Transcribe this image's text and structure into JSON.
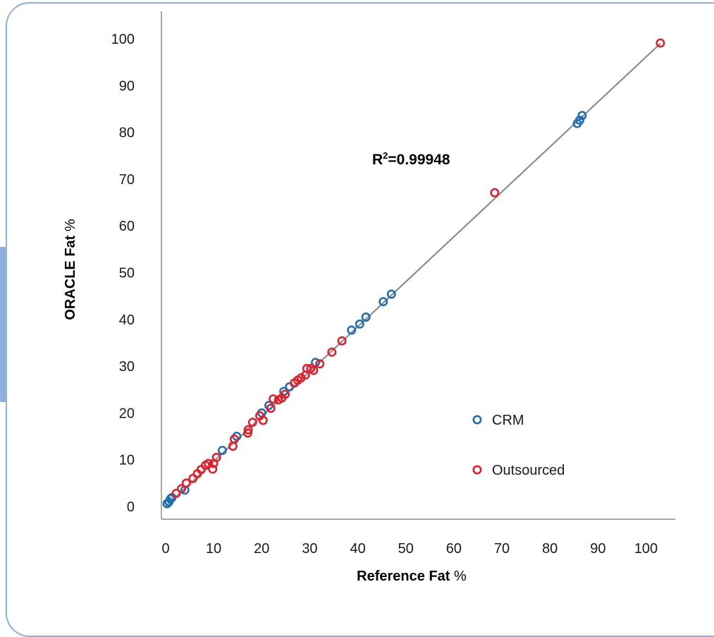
{
  "chart_data": {
    "type": "scatter",
    "xlabel": "Reference Fat",
    "xlabel_unit": "%",
    "ylabel": "ORACLE Fat",
    "ylabel_unit": "%",
    "xlim": [
      0,
      105
    ],
    "ylim": [
      0,
      100
    ],
    "x_ticks": [
      0,
      10,
      20,
      30,
      40,
      50,
      60,
      70,
      80,
      90,
      100
    ],
    "y_ticks": [
      0,
      10,
      20,
      30,
      40,
      50,
      60,
      70,
      80,
      90,
      100
    ],
    "annotation": {
      "prefix": "R",
      "superscript": "2",
      "value_text": "=0.99948"
    },
    "trendline": {
      "x": [
        0,
        103
      ],
      "y": [
        0,
        99
      ]
    },
    "legend_position": "right",
    "series": [
      {
        "name": "CRM",
        "color": "#1f6fb5",
        "x": [
          0.3,
          0.7,
          1.0,
          1.3,
          4.0,
          11.8,
          14.8,
          20.0,
          21.5,
          24.6,
          25.8,
          31.2,
          38.7,
          40.4,
          41.7,
          45.3,
          47.0,
          85.7,
          86.2,
          86.7
        ],
        "y": [
          0.6,
          1.0,
          1.6,
          1.9,
          3.5,
          12.0,
          15.0,
          20.0,
          21.6,
          24.6,
          25.6,
          30.8,
          37.7,
          39.0,
          40.5,
          43.8,
          45.4,
          81.9,
          82.6,
          83.6
        ]
      },
      {
        "name": "Outsourced",
        "color": "#e0202c",
        "x": [
          2.2,
          3.3,
          4.3,
          5.7,
          6.6,
          7.4,
          8.3,
          8.9,
          9.8,
          10.0,
          10.6,
          14.0,
          14.3,
          17.1,
          17.2,
          18.1,
          19.6,
          20.3,
          21.9,
          22.4,
          23.5,
          24.2,
          24.9,
          26.8,
          27.5,
          28.2,
          29.1,
          29.4,
          30.2,
          30.8,
          32.1,
          34.6,
          36.7,
          68.5,
          103.0
        ],
        "y": [
          2.8,
          3.8,
          5.0,
          6.0,
          7.0,
          7.9,
          8.8,
          9.2,
          8.0,
          9.2,
          10.5,
          12.9,
          14.4,
          15.7,
          16.4,
          18.0,
          19.4,
          18.4,
          21.0,
          23.0,
          22.8,
          23.2,
          24.0,
          26.4,
          27.0,
          27.5,
          28.1,
          29.5,
          29.5,
          29.1,
          30.5,
          33.0,
          35.4,
          67.1,
          99.1
        ]
      }
    ]
  }
}
